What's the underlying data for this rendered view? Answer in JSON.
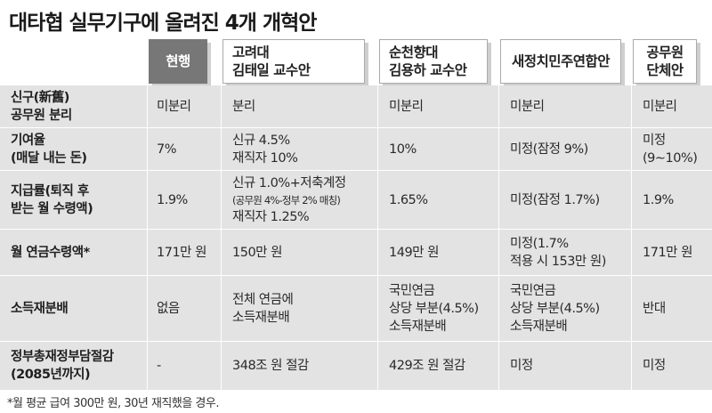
{
  "title": "대타협 실무기구에 올려진 4개 개혁안",
  "headers": {
    "current": "현행",
    "prop1": [
      "고려대",
      "김태일 교수안"
    ],
    "prop2": [
      "순천향대",
      "김용하 교수안"
    ],
    "prop3": "새정치민주연합안",
    "prop4": [
      "공무원",
      "단체안"
    ]
  },
  "rows": [
    {
      "label": [
        "신구(新舊)",
        "공무원 분리"
      ],
      "current": [
        "미분리"
      ],
      "prop1": [
        "분리"
      ],
      "prop2": [
        "미분리"
      ],
      "prop3": [
        "미분리"
      ],
      "prop4": [
        "미분리"
      ]
    },
    {
      "label": [
        "기여율",
        "(매달 내는 돈)"
      ],
      "current": [
        "7%"
      ],
      "prop1": [
        "신규 4.5%",
        "재직자 10%"
      ],
      "prop2": [
        "10%"
      ],
      "prop3": [
        "미정(잠정 9%)"
      ],
      "prop4": [
        "미정",
        "(9∼10%)"
      ]
    },
    {
      "label": [
        "지급률(퇴직 후",
        "받는 월 수령액)"
      ],
      "current": [
        "1.9%"
      ],
      "prop1": [
        "신규 1.0%+저축계정",
        "(공무원 4%-정부 2% 매칭)",
        "재직자 1.25%"
      ],
      "prop2": [
        "1.65%"
      ],
      "prop3": [
        "미정(잠정 1.7%)"
      ],
      "prop4": [
        "1.9%"
      ]
    },
    {
      "label": [
        "월 연금수령액*"
      ],
      "current": [
        "171만 원"
      ],
      "prop1": [
        "150만 원"
      ],
      "prop2": [
        "149만 원"
      ],
      "prop3": [
        "미정(1.7%",
        "적용 시 153만 원)"
      ],
      "prop4": [
        "171만 원"
      ]
    },
    {
      "label": [
        "소득재분배"
      ],
      "current": [
        "없음"
      ],
      "prop1": [
        "전체 연금에",
        "소득재분배"
      ],
      "prop2": [
        "국민연금",
        "상당 부분(4.5%)",
        "소득재분배"
      ],
      "prop3": [
        "국민연금",
        "상당 부분(4.5%)",
        "소득재분배"
      ],
      "prop4": [
        "반대"
      ]
    },
    {
      "label": [
        "정부총재정부담절감",
        "(2085년까지)"
      ],
      "current": [
        "-"
      ],
      "prop1": [
        "348조 원 절감"
      ],
      "prop2": [
        "429조 원 절감"
      ],
      "prop3": [
        "미정"
      ],
      "prop4": [
        "미정"
      ]
    }
  ],
  "footnote": "*월 평균 급여 300만 원, 30년 재직했을 경우."
}
